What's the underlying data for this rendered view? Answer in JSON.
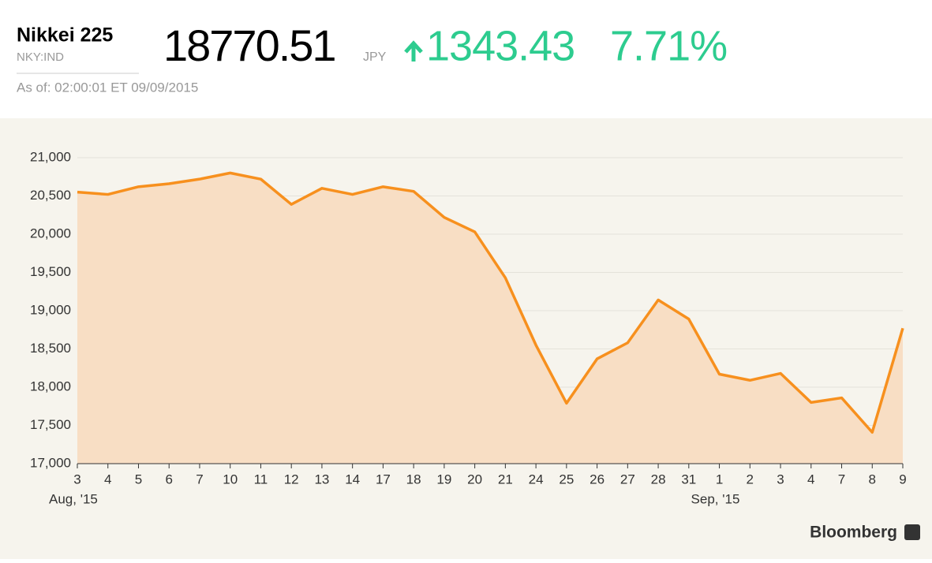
{
  "header": {
    "name": "Nikkei 225",
    "ticker": "NKY:IND",
    "price": "18770.51",
    "currency": "JPY",
    "change": "1343.43",
    "change_percent": "7.71%",
    "as_of": "As of: 02:00:01 ET 09/09/2015"
  },
  "brand": "Bloomberg",
  "chart_data": {
    "type": "line",
    "color": "#f7901e",
    "fill_color": "#f8dec4",
    "grid": true,
    "categories": [
      "3",
      "4",
      "5",
      "6",
      "7",
      "10",
      "11",
      "12",
      "13",
      "14",
      "17",
      "18",
      "19",
      "20",
      "21",
      "24",
      "25",
      "26",
      "27",
      "28",
      "31",
      "1",
      "2",
      "3",
      "4",
      "7",
      "8",
      "9"
    ],
    "month_labels": [
      {
        "label": "Aug, '15",
        "category_index": 0
      },
      {
        "label": "Sep, '15",
        "category_index": 21
      }
    ],
    "values": [
      20550,
      20520,
      20620,
      20660,
      20720,
      20800,
      20720,
      20390,
      20600,
      20520,
      20620,
      20560,
      20220,
      20030,
      19430,
      18550,
      17790,
      18370,
      18580,
      19140,
      18890,
      18170,
      18090,
      18180,
      17800,
      17860,
      17410,
      18770.51
    ],
    "ylim": [
      17000,
      21000
    ],
    "yticks": [
      {
        "value": 17000,
        "label": "17,000"
      },
      {
        "value": 17500,
        "label": "17,500"
      },
      {
        "value": 18000,
        "label": "18,000"
      },
      {
        "value": 18500,
        "label": "18,500"
      },
      {
        "value": 19000,
        "label": "19,000"
      },
      {
        "value": 19500,
        "label": "19,500"
      },
      {
        "value": 20000,
        "label": "20,000"
      },
      {
        "value": 20500,
        "label": "20,500"
      },
      {
        "value": 21000,
        "label": "21,000"
      }
    ]
  }
}
